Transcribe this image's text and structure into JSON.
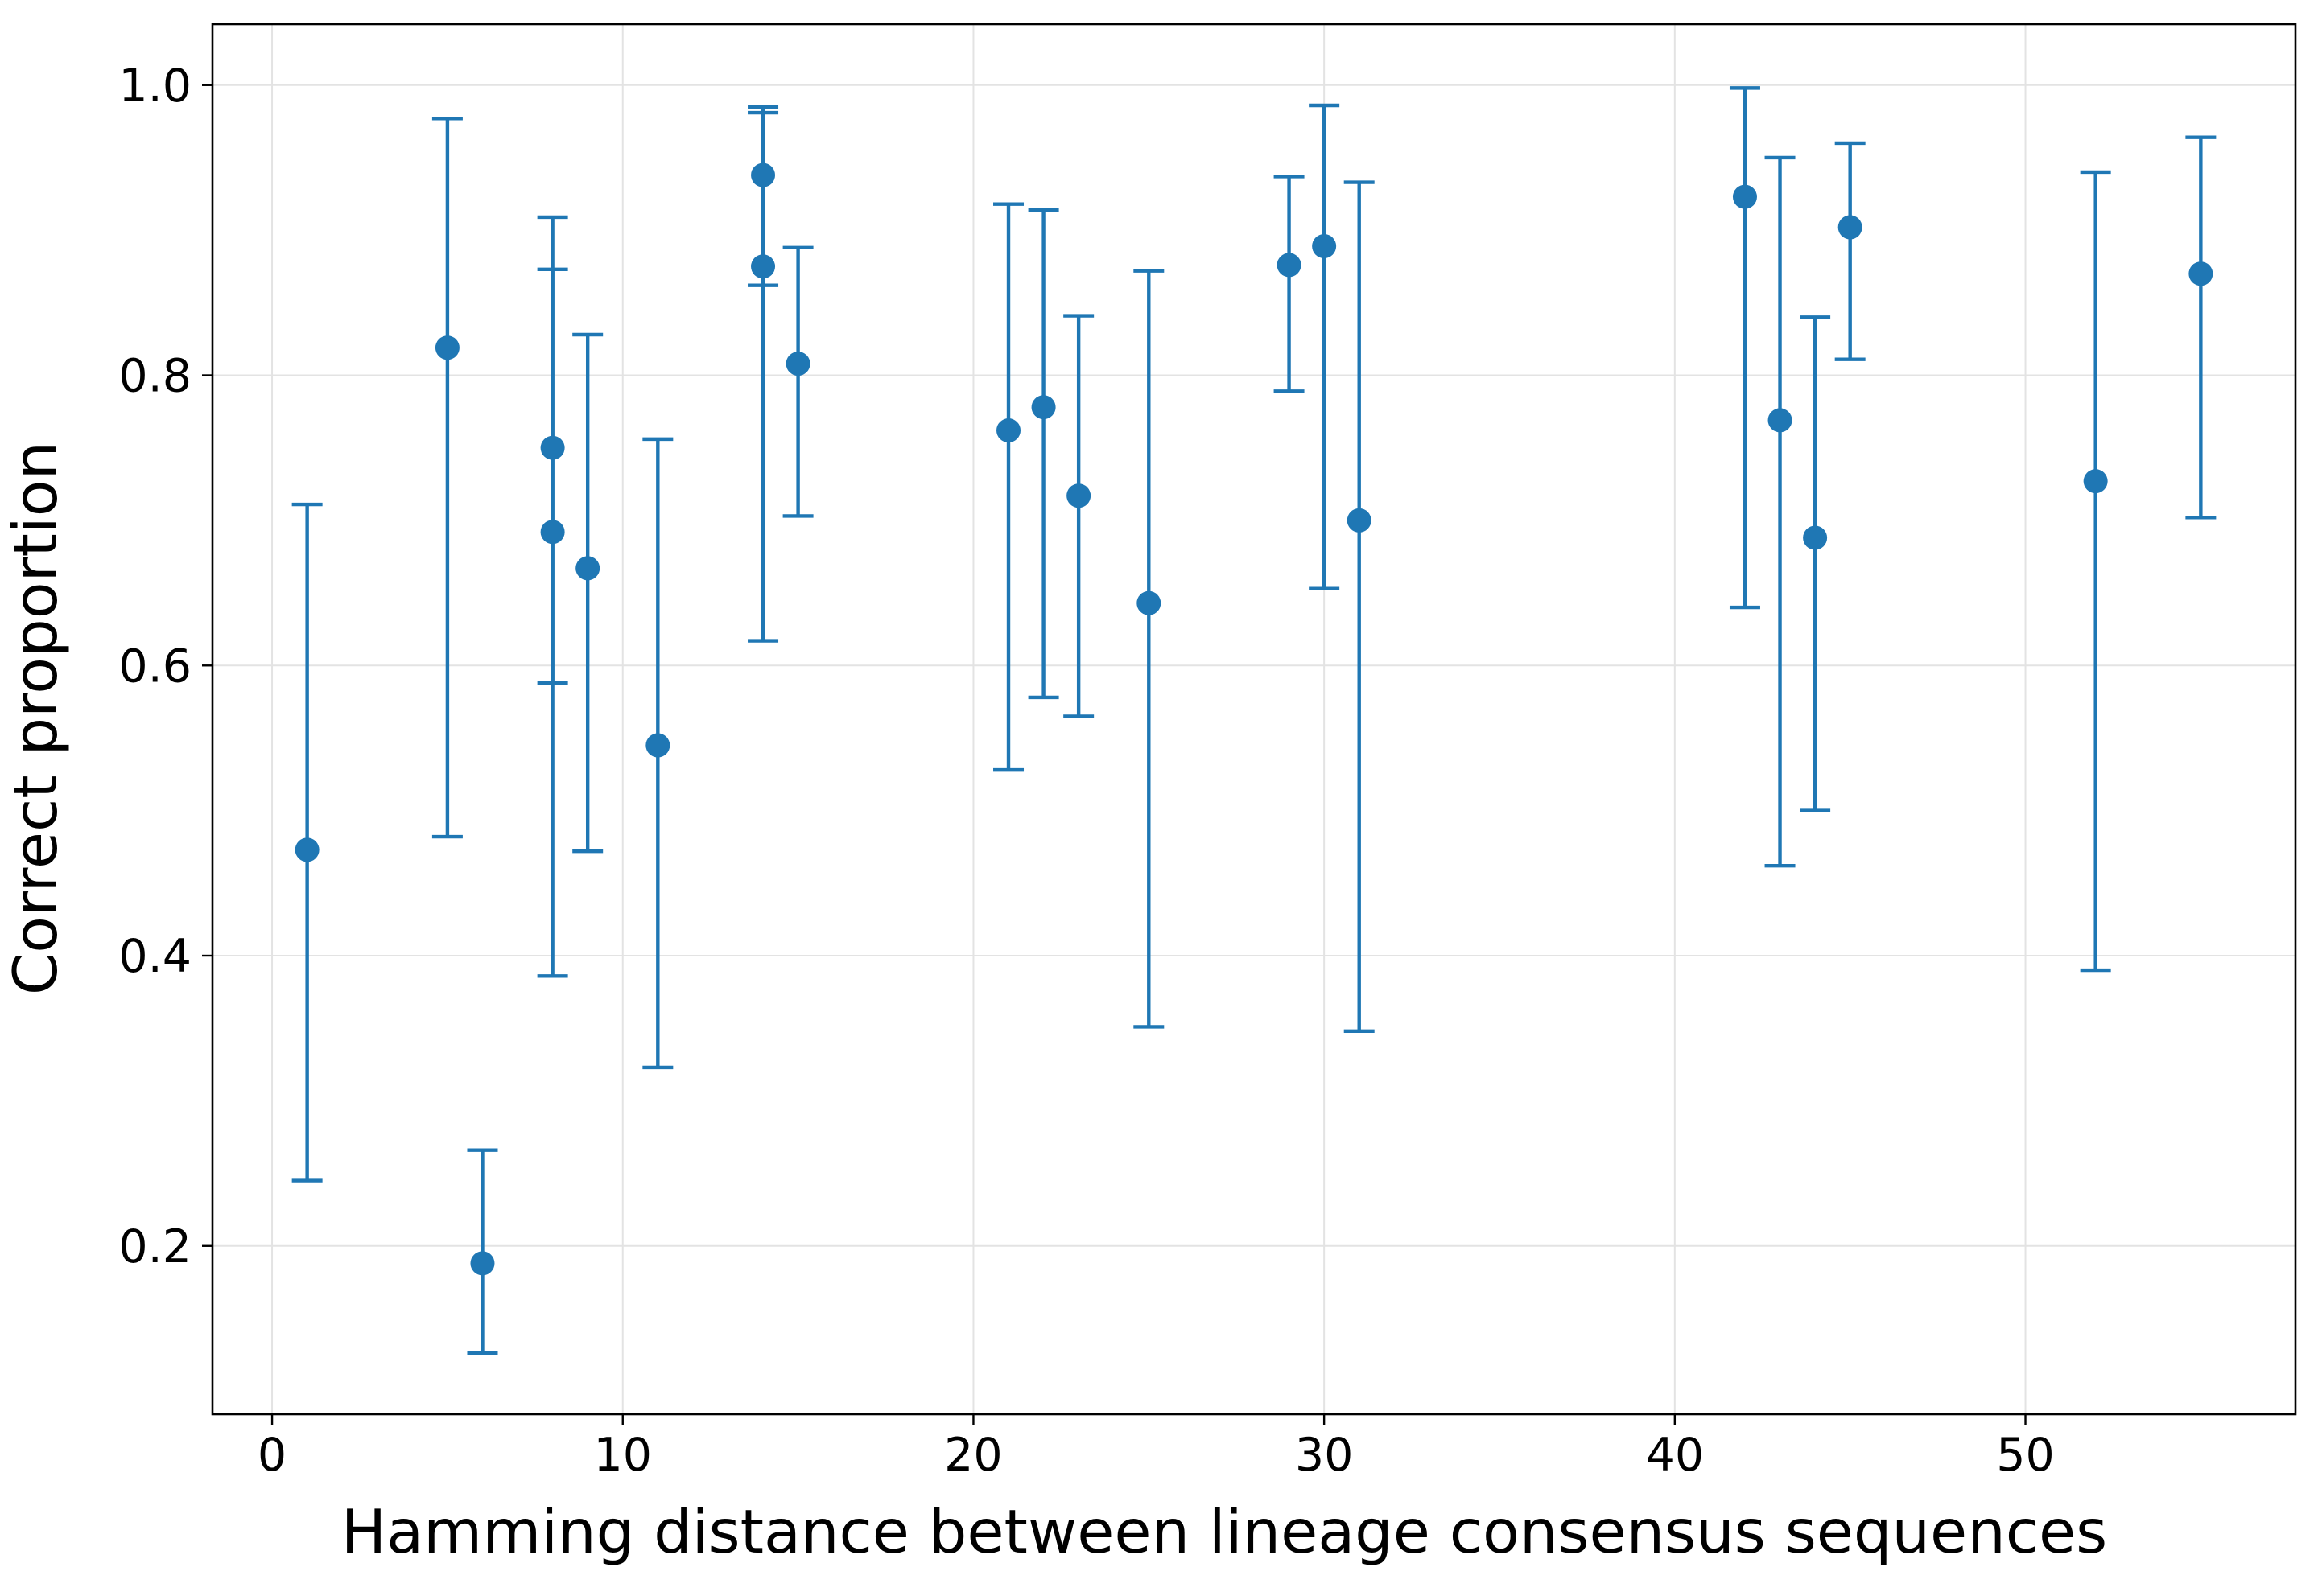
{
  "chart_data": {
    "type": "scatter",
    "xlabel": "Hamming distance between lineage consensus sequences",
    "ylabel": "Correct proportion",
    "xlim": [
      -1.7,
      57.7
    ],
    "ylim": [
      0.084,
      1.042
    ],
    "xticks": [
      0,
      10,
      20,
      30,
      40,
      50
    ],
    "yticks": [
      0.2,
      0.4,
      0.6,
      0.8,
      1.0
    ],
    "xtick_labels": [
      "0",
      "10",
      "20",
      "30",
      "40",
      "50"
    ],
    "ytick_labels": [
      "0.2",
      "0.4",
      "0.6",
      "0.8",
      "1.0"
    ],
    "grid": true,
    "error_bars": true,
    "color": "#1f77b4",
    "points": [
      {
        "x": 1,
        "y": 0.473,
        "lo": 0.245,
        "hi": 0.711
      },
      {
        "x": 5,
        "y": 0.819,
        "lo": 0.482,
        "hi": 0.977
      },
      {
        "x": 6,
        "y": 0.188,
        "lo": 0.126,
        "hi": 0.266
      },
      {
        "x": 8,
        "y": 0.75,
        "lo": 0.386,
        "hi": 0.873
      },
      {
        "x": 8,
        "y": 0.692,
        "lo": 0.588,
        "hi": 0.909
      },
      {
        "x": 9,
        "y": 0.667,
        "lo": 0.472,
        "hi": 0.828
      },
      {
        "x": 11,
        "y": 0.545,
        "lo": 0.323,
        "hi": 0.756
      },
      {
        "x": 14,
        "y": 0.938,
        "lo": 0.862,
        "hi": 0.985
      },
      {
        "x": 14,
        "y": 0.875,
        "lo": 0.617,
        "hi": 0.981
      },
      {
        "x": 15,
        "y": 0.808,
        "lo": 0.703,
        "hi": 0.888
      },
      {
        "x": 21,
        "y": 0.762,
        "lo": 0.528,
        "hi": 0.918
      },
      {
        "x": 22,
        "y": 0.778,
        "lo": 0.578,
        "hi": 0.914
      },
      {
        "x": 23,
        "y": 0.717,
        "lo": 0.565,
        "hi": 0.841
      },
      {
        "x": 25,
        "y": 0.643,
        "lo": 0.351,
        "hi": 0.872
      },
      {
        "x": 29,
        "y": 0.876,
        "lo": 0.789,
        "hi": 0.937
      },
      {
        "x": 30,
        "y": 0.889,
        "lo": 0.653,
        "hi": 0.986
      },
      {
        "x": 31,
        "y": 0.7,
        "lo": 0.348,
        "hi": 0.933
      },
      {
        "x": 42,
        "y": 0.923,
        "lo": 0.64,
        "hi": 0.998
      },
      {
        "x": 43,
        "y": 0.769,
        "lo": 0.462,
        "hi": 0.95
      },
      {
        "x": 44,
        "y": 0.688,
        "lo": 0.5,
        "hi": 0.84
      },
      {
        "x": 45,
        "y": 0.902,
        "lo": 0.811,
        "hi": 0.96
      },
      {
        "x": 52,
        "y": 0.727,
        "lo": 0.39,
        "hi": 0.94
      },
      {
        "x": 55,
        "y": 0.87,
        "lo": 0.702,
        "hi": 0.964
      }
    ]
  }
}
